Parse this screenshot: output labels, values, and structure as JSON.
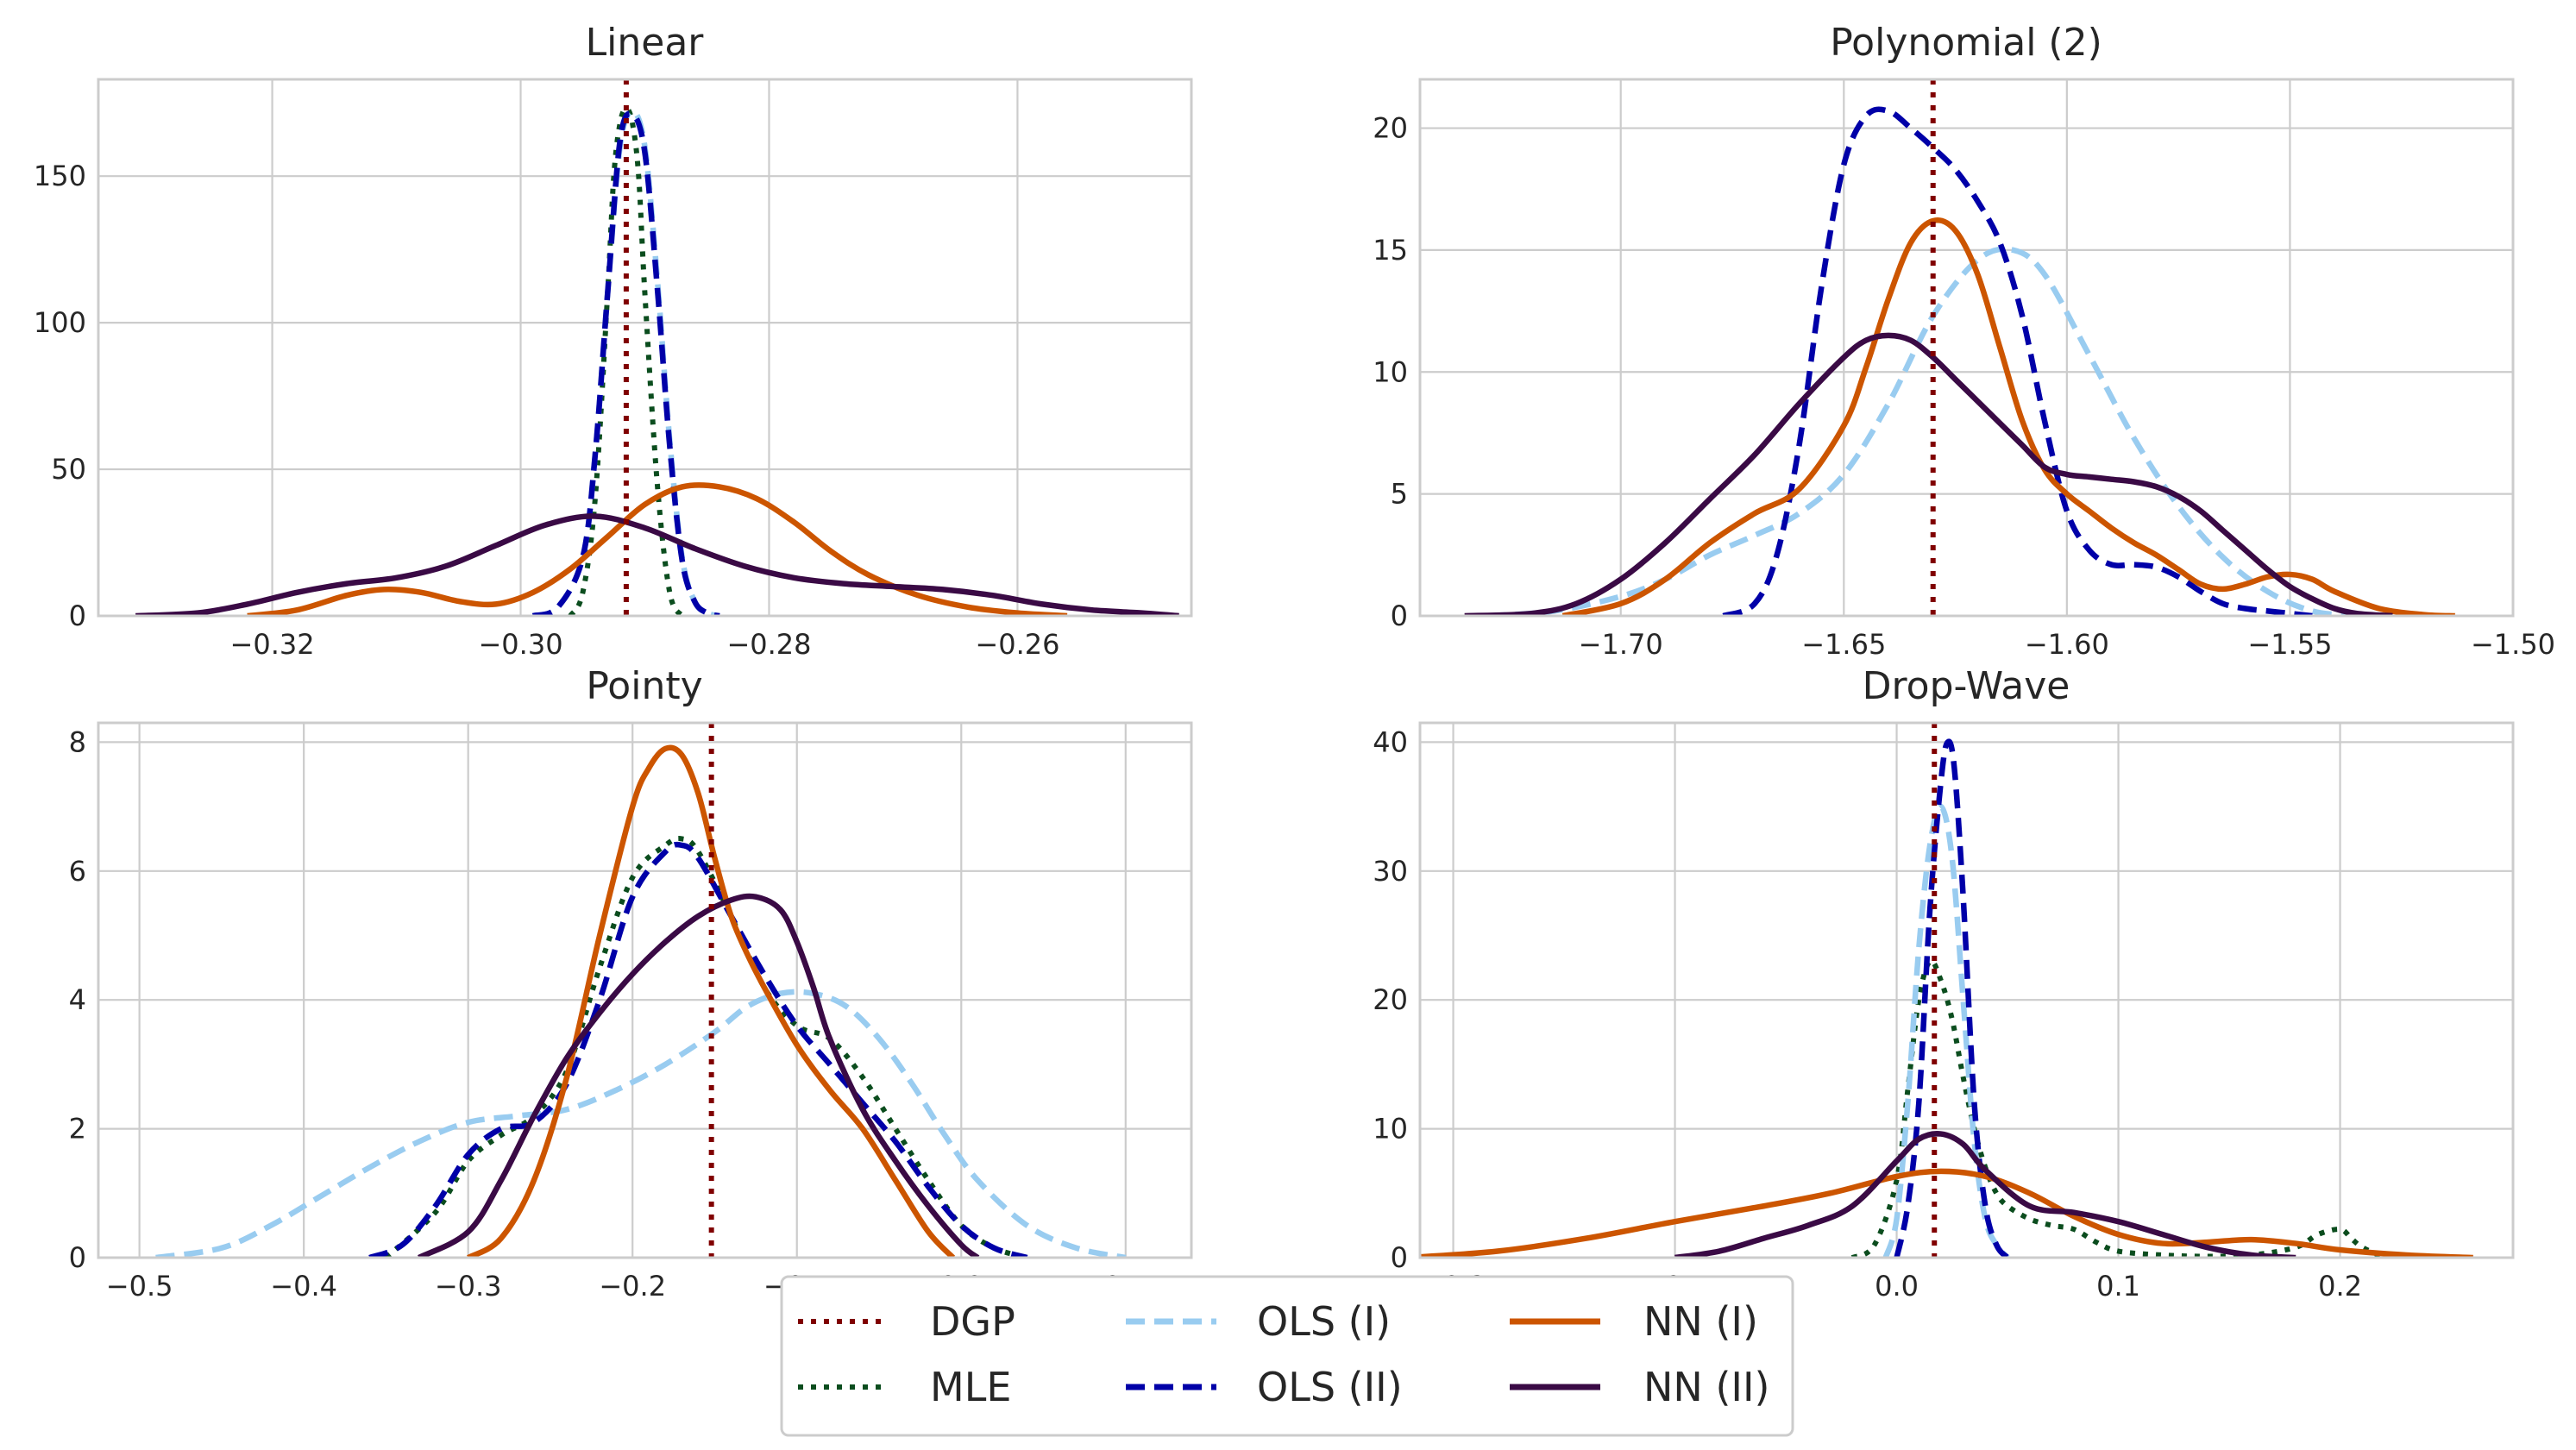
{
  "colors": {
    "DGP": "#800000",
    "MLE": "#0b4d1e",
    "OLS (I)": "#99ccf0",
    "OLS (II)": "#0000a8",
    "NN (I)": "#cc5500",
    "NN (II)": "#3a0a45"
  },
  "legend": {
    "entries": [
      {
        "label": "DGP",
        "style": "dotted"
      },
      {
        "label": "MLE",
        "style": "dotted"
      },
      {
        "label": "OLS (I)",
        "style": "dashed"
      },
      {
        "label": "OLS (II)",
        "style": "dashed"
      },
      {
        "label": "NN (I)",
        "style": "solid"
      },
      {
        "label": "NN (II)",
        "style": "solid"
      }
    ]
  },
  "chart_data": [
    {
      "type": "line",
      "title": "Linear",
      "xlim": [
        -0.334,
        -0.246
      ],
      "ylim": [
        0,
        183
      ],
      "xticks": [
        -0.32,
        -0.3,
        -0.28,
        -0.26
      ],
      "xtick_labels": [
        "−0.32",
        "−0.30",
        "−0.28",
        "−0.26"
      ],
      "yticks": [
        0,
        50,
        100,
        150
      ],
      "ytick_labels": [
        "0",
        "50",
        "100",
        "150"
      ],
      "grid": true,
      "vline": {
        "name": "DGP",
        "x": -0.2915
      },
      "series": [
        {
          "name": "MLE",
          "x": [
            -0.296,
            -0.295,
            -0.294,
            -0.293,
            -0.2925,
            -0.292,
            -0.2915,
            -0.291,
            -0.2905,
            -0.29,
            -0.289,
            -0.288,
            -0.287
          ],
          "y": [
            0,
            8,
            40,
            110,
            150,
            168,
            173,
            168,
            150,
            110,
            45,
            8,
            0
          ]
        },
        {
          "name": "OLS (I)",
          "x": [
            -0.299,
            -0.297,
            -0.295,
            -0.294,
            -0.293,
            -0.292,
            -0.291,
            -0.29,
            -0.289,
            -0.288,
            -0.287,
            -0.286,
            -0.285,
            -0.284
          ],
          "y": [
            0,
            3,
            20,
            55,
            110,
            160,
            172,
            160,
            115,
            60,
            20,
            5,
            1,
            0
          ]
        },
        {
          "name": "OLS (II)",
          "x": [
            -0.299,
            -0.297,
            -0.295,
            -0.294,
            -0.293,
            -0.292,
            -0.291,
            -0.29,
            -0.289,
            -0.288,
            -0.287,
            -0.286,
            -0.285,
            -0.284
          ],
          "y": [
            0,
            3,
            20,
            55,
            110,
            162,
            171,
            158,
            112,
            58,
            19,
            5,
            1,
            0
          ]
        },
        {
          "name": "NN (I)",
          "x": [
            -0.322,
            -0.318,
            -0.314,
            -0.311,
            -0.308,
            -0.305,
            -0.302,
            -0.299,
            -0.296,
            -0.293,
            -0.29,
            -0.287,
            -0.284,
            -0.281,
            -0.278,
            -0.275,
            -0.272,
            -0.268,
            -0.264,
            -0.26,
            -0.256
          ],
          "y": [
            0,
            2,
            7,
            9,
            8,
            5,
            4,
            8,
            16,
            27,
            38,
            44,
            44,
            40,
            32,
            22,
            14,
            7,
            3,
            1,
            0
          ]
        },
        {
          "name": "NN (II)",
          "x": [
            -0.331,
            -0.326,
            -0.322,
            -0.318,
            -0.314,
            -0.31,
            -0.306,
            -0.302,
            -0.298,
            -0.294,
            -0.29,
            -0.286,
            -0.282,
            -0.278,
            -0.274,
            -0.27,
            -0.266,
            -0.262,
            -0.258,
            -0.254,
            -0.25,
            -0.247
          ],
          "y": [
            0,
            1,
            4,
            8,
            11,
            13,
            17,
            24,
            31,
            34,
            30,
            23,
            17,
            13,
            11,
            10,
            9,
            7,
            4,
            2,
            1,
            0
          ]
        }
      ]
    },
    {
      "type": "line",
      "title": "Polynomial (2)",
      "xlim": [
        -1.745,
        -1.5
      ],
      "ylim": [
        0,
        22
      ],
      "xticks": [
        -1.7,
        -1.65,
        -1.6,
        -1.55,
        -1.5
      ],
      "xtick_labels": [
        "−1.70",
        "−1.65",
        "−1.60",
        "−1.55",
        "−1.50"
      ],
      "yticks": [
        0,
        5,
        10,
        15,
        20
      ],
      "ytick_labels": [
        "0",
        "5",
        "10",
        "15",
        "20"
      ],
      "grid": true,
      "vline": {
        "name": "DGP",
        "x": -1.63
      },
      "series": [
        {
          "name": "OLS (I)",
          "x": [
            -1.73,
            -1.715,
            -1.7,
            -1.69,
            -1.68,
            -1.67,
            -1.66,
            -1.65,
            -1.64,
            -1.63,
            -1.62,
            -1.612,
            -1.605,
            -1.595,
            -1.585,
            -1.575,
            -1.565,
            -1.555,
            -1.545,
            -1.535
          ],
          "y": [
            0,
            0.2,
            0.8,
            1.5,
            2.5,
            3.3,
            4.2,
            5.8,
            8.7,
            12.3,
            14.6,
            15.0,
            14.0,
            10.7,
            7.3,
            4.5,
            2.4,
            1.0,
            0.2,
            0
          ]
        },
        {
          "name": "OLS (II)",
          "x": [
            -1.677,
            -1.67,
            -1.665,
            -1.66,
            -1.655,
            -1.65,
            -1.645,
            -1.64,
            -1.635,
            -1.63,
            -1.625,
            -1.62,
            -1.615,
            -1.61,
            -1.605,
            -1.6,
            -1.595,
            -1.59,
            -1.585,
            -1.58,
            -1.575,
            -1.57,
            -1.565,
            -1.56,
            -1.555,
            -1.55,
            -1.545
          ],
          "y": [
            0,
            0.5,
            2.5,
            7.0,
            13.5,
            18.5,
            20.5,
            20.7,
            20.0,
            19.2,
            18.3,
            17.0,
            15.3,
            12.3,
            8.0,
            4.3,
            2.7,
            2.1,
            2.1,
            2.0,
            1.6,
            1.0,
            0.5,
            0.3,
            0.2,
            0.1,
            0
          ]
        },
        {
          "name": "NN (I)",
          "x": [
            -1.713,
            -1.7,
            -1.69,
            -1.68,
            -1.67,
            -1.66,
            -1.65,
            -1.645,
            -1.64,
            -1.635,
            -1.63,
            -1.625,
            -1.62,
            -1.615,
            -1.61,
            -1.605,
            -1.6,
            -1.595,
            -1.59,
            -1.585,
            -1.58,
            -1.575,
            -1.57,
            -1.565,
            -1.56,
            -1.555,
            -1.55,
            -1.545,
            -1.54,
            -1.53,
            -1.52,
            -1.513
          ],
          "y": [
            0,
            0.5,
            1.5,
            3.0,
            4.2,
            5.2,
            7.8,
            10.2,
            13.0,
            15.3,
            16.2,
            15.8,
            14.0,
            11.0,
            8.0,
            6.0,
            5.0,
            4.3,
            3.6,
            3.0,
            2.5,
            1.9,
            1.3,
            1.1,
            1.3,
            1.6,
            1.7,
            1.5,
            1.0,
            0.3,
            0.05,
            0
          ]
        },
        {
          "name": "NN (II)",
          "x": [
            -1.735,
            -1.72,
            -1.71,
            -1.7,
            -1.69,
            -1.68,
            -1.67,
            -1.66,
            -1.65,
            -1.645,
            -1.64,
            -1.635,
            -1.63,
            -1.625,
            -1.62,
            -1.615,
            -1.61,
            -1.605,
            -1.6,
            -1.595,
            -1.59,
            -1.585,
            -1.58,
            -1.575,
            -1.57,
            -1.565,
            -1.56,
            -1.555,
            -1.55,
            -1.545,
            -1.54,
            -1.535,
            -1.527
          ],
          "y": [
            0,
            0.1,
            0.5,
            1.5,
            3.0,
            4.8,
            6.6,
            8.7,
            10.6,
            11.3,
            11.5,
            11.3,
            10.6,
            9.7,
            8.8,
            7.9,
            7.0,
            6.1,
            5.8,
            5.7,
            5.6,
            5.5,
            5.3,
            4.9,
            4.3,
            3.5,
            2.7,
            1.9,
            1.2,
            0.7,
            0.3,
            0.1,
            0
          ]
        }
      ]
    },
    {
      "type": "line",
      "title": "Pointy",
      "xlim": [
        -0.525,
        0.14
      ],
      "ylim": [
        0,
        8.3
      ],
      "xticks": [
        -0.5,
        -0.4,
        -0.3,
        -0.2,
        -0.1,
        0.0,
        0.1
      ],
      "xtick_labels": [
        "−0.5",
        "−0.4",
        "−0.3",
        "−0.2",
        "−0.1",
        "0.0",
        "0.1"
      ],
      "yticks": [
        0,
        2,
        4,
        6,
        8
      ],
      "ytick_labels": [
        "0",
        "2",
        "4",
        "6",
        "8"
      ],
      "grid": true,
      "vline": {
        "name": "DGP",
        "x": -0.152
      },
      "series": [
        {
          "name": "MLE",
          "x": [
            -0.35,
            -0.32,
            -0.3,
            -0.28,
            -0.26,
            -0.24,
            -0.22,
            -0.2,
            -0.18,
            -0.17,
            -0.16,
            -0.14,
            -0.12,
            -0.1,
            -0.08,
            -0.06,
            -0.04,
            -0.02,
            0.0,
            0.02,
            0.04
          ],
          "y": [
            0,
            0.7,
            1.5,
            1.9,
            2.2,
            2.9,
            4.5,
            5.9,
            6.4,
            6.5,
            6.3,
            5.3,
            4.2,
            3.6,
            3.4,
            2.8,
            2.0,
            1.2,
            0.5,
            0.15,
            0
          ]
        },
        {
          "name": "OLS (I)",
          "x": [
            -0.49,
            -0.45,
            -0.42,
            -0.39,
            -0.36,
            -0.33,
            -0.3,
            -0.27,
            -0.24,
            -0.21,
            -0.18,
            -0.15,
            -0.13,
            -0.11,
            -0.09,
            -0.07,
            -0.05,
            -0.03,
            -0.01,
            0.01,
            0.04,
            0.07,
            0.1
          ],
          "y": [
            0,
            0.15,
            0.5,
            0.95,
            1.4,
            1.8,
            2.1,
            2.2,
            2.3,
            2.6,
            3.0,
            3.5,
            3.9,
            4.1,
            4.1,
            3.9,
            3.4,
            2.7,
            1.9,
            1.2,
            0.5,
            0.15,
            0
          ]
        },
        {
          "name": "OLS (II)",
          "x": [
            -0.36,
            -0.34,
            -0.32,
            -0.3,
            -0.28,
            -0.26,
            -0.24,
            -0.22,
            -0.2,
            -0.18,
            -0.17,
            -0.16,
            -0.14,
            -0.12,
            -0.1,
            -0.08,
            -0.06,
            -0.04,
            -0.02,
            0.0,
            0.02,
            0.04
          ],
          "y": [
            0,
            0.2,
            0.8,
            1.6,
            2.0,
            2.1,
            2.7,
            4.0,
            5.6,
            6.3,
            6.4,
            6.2,
            5.3,
            4.4,
            3.6,
            3.0,
            2.4,
            1.8,
            1.1,
            0.5,
            0.15,
            0
          ]
        },
        {
          "name": "NN (I)",
          "x": [
            -0.3,
            -0.28,
            -0.26,
            -0.24,
            -0.22,
            -0.2,
            -0.19,
            -0.18,
            -0.17,
            -0.16,
            -0.15,
            -0.14,
            -0.13,
            -0.12,
            -0.1,
            -0.08,
            -0.06,
            -0.04,
            -0.02,
            -0.005
          ],
          "y": [
            0,
            0.3,
            1.2,
            2.8,
            5.0,
            7.0,
            7.6,
            7.9,
            7.8,
            7.2,
            6.2,
            5.3,
            4.7,
            4.2,
            3.3,
            2.6,
            2.0,
            1.2,
            0.4,
            0
          ]
        },
        {
          "name": "NN (II)",
          "x": [
            -0.33,
            -0.3,
            -0.28,
            -0.26,
            -0.24,
            -0.22,
            -0.2,
            -0.18,
            -0.16,
            -0.14,
            -0.125,
            -0.11,
            -0.1,
            -0.09,
            -0.08,
            -0.06,
            -0.04,
            -0.02,
            0.0,
            0.01
          ],
          "y": [
            0,
            0.4,
            1.2,
            2.2,
            3.1,
            3.8,
            4.4,
            4.9,
            5.3,
            5.55,
            5.6,
            5.4,
            4.9,
            4.2,
            3.4,
            2.3,
            1.5,
            0.8,
            0.2,
            0
          ]
        }
      ]
    },
    {
      "type": "line",
      "title": "Drop-Wave",
      "xlim": [
        -0.215,
        0.278
      ],
      "ylim": [
        0,
        41.5
      ],
      "xticks": [
        -0.2,
        -0.1,
        0.0,
        0.1,
        0.2
      ],
      "xtick_labels": [
        "−0.2",
        "−0.1",
        "0.0",
        "0.1",
        "0.2"
      ],
      "yticks": [
        0,
        10,
        20,
        30,
        40
      ],
      "ytick_labels": [
        "0",
        "10",
        "20",
        "30",
        "40"
      ],
      "grid": true,
      "vline": {
        "name": "DGP",
        "x": 0.017
      },
      "series": [
        {
          "name": "MLE",
          "x": [
            -0.02,
            -0.01,
            0.0,
            0.005,
            0.01,
            0.015,
            0.02,
            0.025,
            0.03,
            0.035,
            0.04,
            0.045,
            0.05,
            0.06,
            0.07,
            0.08,
            0.09,
            0.1,
            0.12,
            0.14,
            0.16,
            0.18,
            0.19,
            0.2,
            0.205,
            0.21,
            0.22
          ],
          "y": [
            0,
            1.0,
            6.0,
            13.0,
            20.0,
            23.0,
            21.5,
            18.5,
            14.0,
            10.0,
            7.0,
            5.0,
            4.0,
            3.0,
            2.5,
            2.2,
            1.2,
            0.5,
            0.2,
            0.1,
            0.2,
            0.8,
            1.8,
            2.2,
            1.5,
            0.8,
            0
          ]
        },
        {
          "name": "OLS (I)",
          "x": [
            -0.005,
            0.0,
            0.005,
            0.01,
            0.015,
            0.02,
            0.025,
            0.03,
            0.035,
            0.04,
            0.045,
            0.05
          ],
          "y": [
            0,
            3,
            12,
            24,
            32,
            35,
            31,
            20,
            9,
            3,
            1,
            0
          ]
        },
        {
          "name": "OLS (II)",
          "x": [
            0.0,
            0.005,
            0.01,
            0.015,
            0.02,
            0.023,
            0.026,
            0.03,
            0.035,
            0.04,
            0.045,
            0.05
          ],
          "y": [
            0,
            4,
            12,
            27,
            37,
            40,
            38,
            28,
            12,
            4,
            1,
            0
          ]
        },
        {
          "name": "NN (I)",
          "x": [
            -0.22,
            -0.18,
            -0.14,
            -0.1,
            -0.06,
            -0.03,
            0.0,
            0.02,
            0.04,
            0.06,
            0.08,
            0.1,
            0.12,
            0.14,
            0.16,
            0.18,
            0.2,
            0.23,
            0.26
          ],
          "y": [
            0,
            0.5,
            1.5,
            2.8,
            4.0,
            5.0,
            6.3,
            6.7,
            6.3,
            5.0,
            3.2,
            1.8,
            1.1,
            1.2,
            1.4,
            1.1,
            0.6,
            0.2,
            0
          ]
        },
        {
          "name": "NN (II)",
          "x": [
            -0.1,
            -0.08,
            -0.06,
            -0.04,
            -0.02,
            0.0,
            0.01,
            0.02,
            0.03,
            0.04,
            0.06,
            0.08,
            0.1,
            0.12,
            0.14,
            0.16,
            0.18
          ],
          "y": [
            0,
            0.5,
            1.5,
            2.5,
            4.0,
            7.5,
            9.2,
            9.6,
            8.8,
            6.8,
            4.0,
            3.5,
            2.8,
            1.8,
            0.8,
            0.2,
            0
          ]
        }
      ]
    }
  ]
}
